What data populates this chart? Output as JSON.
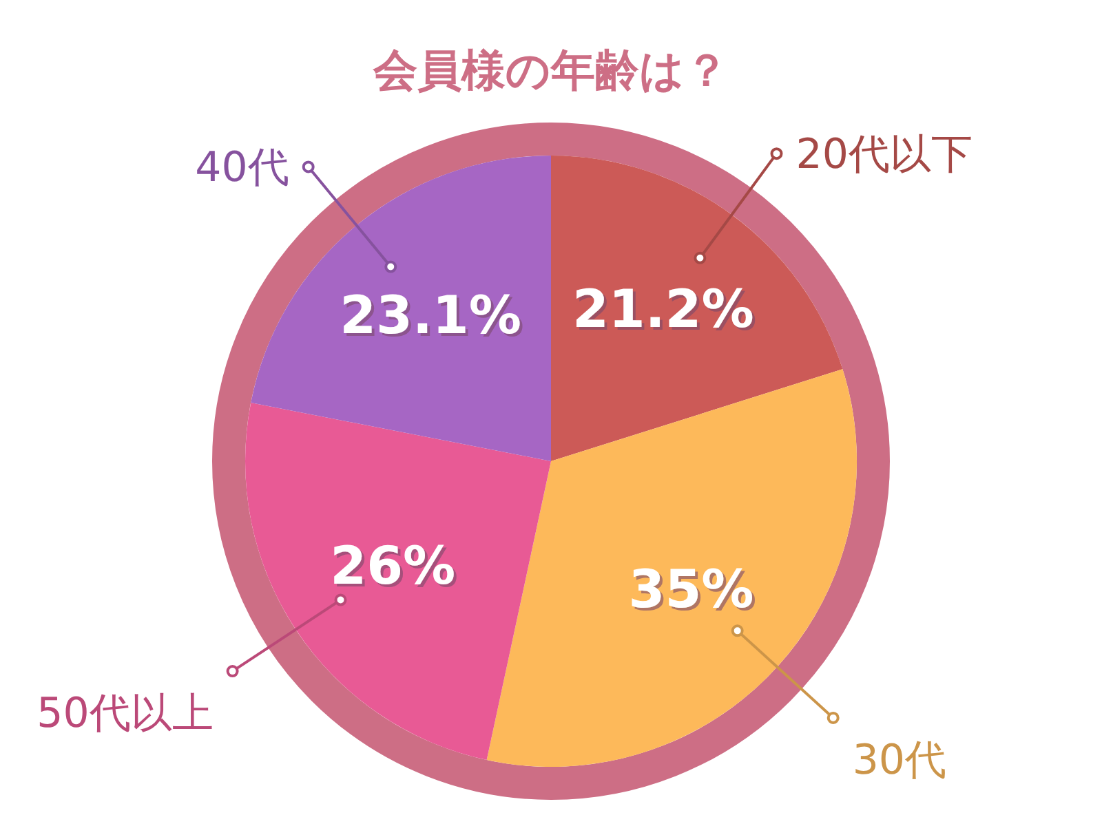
{
  "chart_data": {
    "type": "pie",
    "title": "会員様の年齢は？",
    "categories": [
      "20代以下",
      "30代",
      "50代以上",
      "40代"
    ],
    "values": [
      21.2,
      35,
      26,
      23.1
    ],
    "colors": [
      "#cc5a57",
      "#fdb95a",
      "#e85a95",
      "#a666c4"
    ],
    "value_labels": [
      "21.2%",
      "35%",
      "26%",
      "23.1%"
    ]
  }
}
